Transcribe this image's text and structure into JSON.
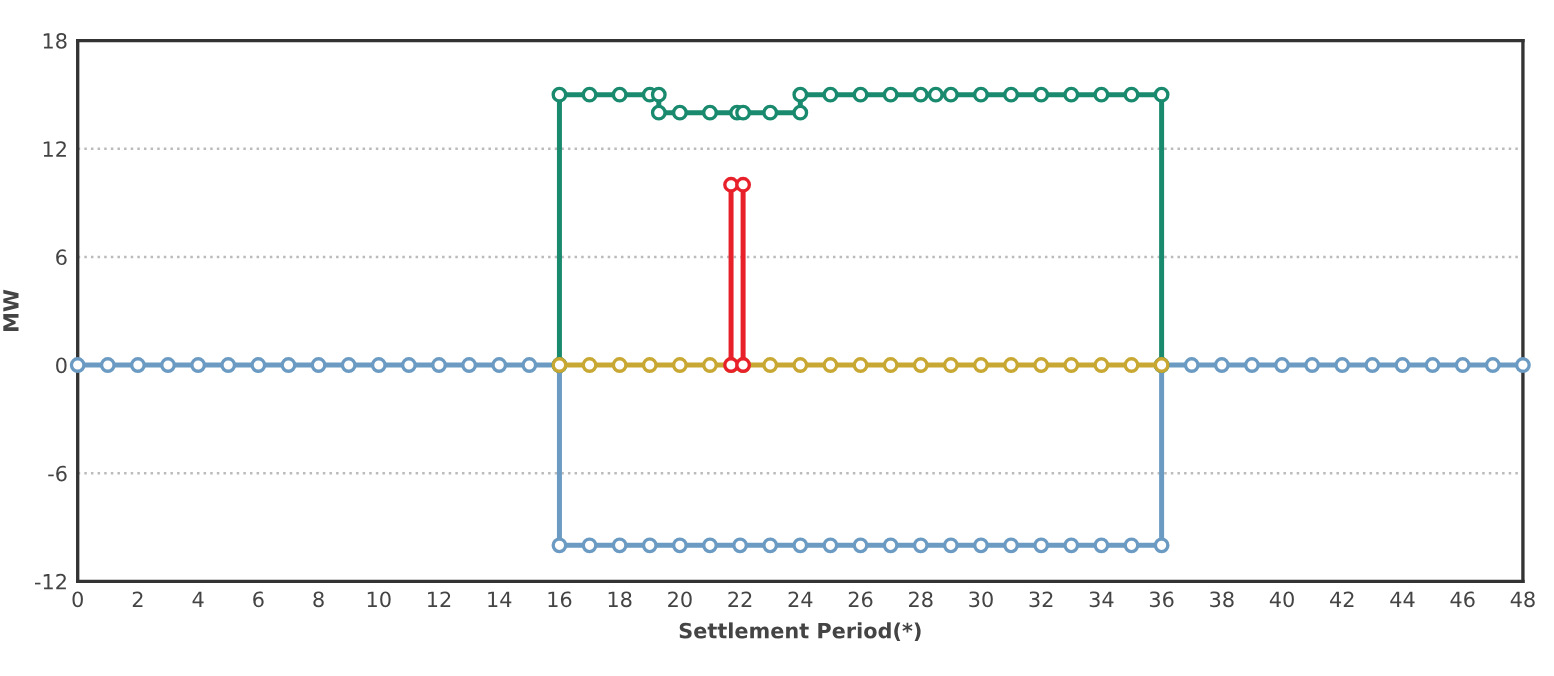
{
  "chart_data": {
    "type": "line",
    "xlabel": "Settlement Period(*)",
    "ylabel": "MW",
    "xlim": [
      0,
      48
    ],
    "xticks": [
      0,
      2,
      4,
      6,
      8,
      10,
      12,
      14,
      16,
      18,
      20,
      22,
      24,
      26,
      28,
      30,
      32,
      34,
      36,
      38,
      40,
      42,
      44,
      46,
      48
    ],
    "ylim": [
      -12,
      18
    ],
    "yticks": [
      -12,
      -6,
      0,
      6,
      12,
      18
    ],
    "grid": "y",
    "marker": "circle",
    "line_style": "solid",
    "legend": false,
    "series": [
      {
        "color": "#6b9bc3",
        "x": [
          0,
          1,
          2,
          3,
          4,
          5,
          6,
          7,
          8,
          9,
          10,
          11,
          12,
          13,
          14,
          15,
          16,
          16,
          17,
          18,
          19,
          20,
          21,
          22,
          23,
          24,
          25,
          26,
          27,
          28,
          29,
          30,
          31,
          32,
          33,
          34,
          35,
          36,
          36,
          37,
          38,
          39,
          40,
          41,
          42,
          43,
          44,
          45,
          46,
          47,
          48
        ],
        "values": [
          0,
          0,
          0,
          0,
          0,
          0,
          0,
          0,
          0,
          0,
          0,
          0,
          0,
          0,
          0,
          0,
          0,
          -10,
          -10,
          -10,
          -10,
          -10,
          -10,
          -10,
          -10,
          -10,
          -10,
          -10,
          -10,
          -10,
          -10,
          -10,
          -10,
          -10,
          -10,
          -10,
          -10,
          -10,
          0,
          0,
          0,
          0,
          0,
          0,
          0,
          0,
          0,
          0,
          0,
          0,
          0
        ]
      },
      {
        "color": "#1a8a6e",
        "x": [
          16,
          16,
          17,
          18,
          19,
          19.3,
          19.3,
          20,
          21,
          21.9,
          22.1,
          23,
          24,
          24,
          25,
          26,
          27,
          28,
          28.5,
          29,
          30,
          31,
          32,
          33,
          34,
          35,
          36,
          36
        ],
        "values": [
          0,
          15,
          15,
          15,
          15,
          15,
          14,
          14,
          14,
          14,
          14,
          14,
          14,
          15,
          15,
          15,
          15,
          15,
          15,
          15,
          15,
          15,
          15,
          15,
          15,
          15,
          15,
          0
        ]
      },
      {
        "color": "#c8a832",
        "x": [
          16,
          17,
          18,
          19,
          20,
          21,
          21.7,
          22.1,
          23,
          24,
          25,
          26,
          27,
          28,
          29,
          30,
          31,
          32,
          33,
          34,
          35,
          36
        ],
        "values": [
          0,
          0,
          0,
          0,
          0,
          0,
          0,
          0,
          0,
          0,
          0,
          0,
          0,
          0,
          0,
          0,
          0,
          0,
          0,
          0,
          0,
          0
        ]
      },
      {
        "color": "#e8202a",
        "x": [
          21.7,
          21.7,
          22.1,
          22.1
        ],
        "values": [
          0,
          10,
          10,
          0
        ]
      }
    ]
  }
}
